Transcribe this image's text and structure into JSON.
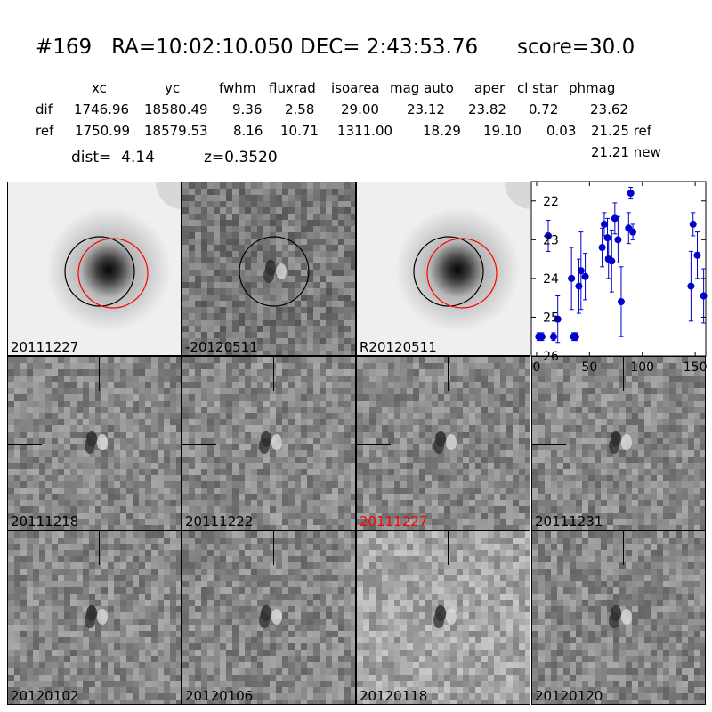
{
  "header": {
    "title": "#169   RA=10:02:10.050 DEC= 2:43:53.76      score=30.0",
    "columns": [
      "xc",
      "yc",
      "fwhm",
      "fluxrad",
      "isoarea",
      "mag auto",
      "aper",
      "cl star",
      "phmag"
    ],
    "dif": {
      "label": "dif",
      "values": [
        "1746.96",
        "18580.49",
        "9.36",
        "2.58",
        "29.00",
        "23.12",
        "23.82",
        "0.72",
        "23.62"
      ]
    },
    "ref": {
      "label": "ref",
      "values": [
        "1750.99",
        "18579.53",
        "8.16",
        "10.71",
        "1311.00",
        "18.29",
        "19.10",
        "0.03",
        "21.25 ref"
      ]
    },
    "extra": "21.21 new",
    "dist": "dist=  4.14",
    "z": "z=0.3520"
  },
  "panels": [
    {
      "label": "20111227",
      "kind": "galaxy",
      "seed": 11,
      "circles": [
        "black",
        "red"
      ],
      "red": false
    },
    {
      "label": "-20120511",
      "kind": "diff",
      "seed": 12,
      "circles": [
        "black"
      ],
      "red": false
    },
    {
      "label": "R20120511",
      "kind": "galaxy",
      "seed": 13,
      "circles": [
        "black",
        "red"
      ],
      "red": false
    },
    {
      "label": "20111218",
      "kind": "stamp",
      "seed": 21,
      "red": false
    },
    {
      "label": "20111222",
      "kind": "stamp",
      "seed": 22,
      "red": false
    },
    {
      "label": "20111227",
      "kind": "stamp",
      "seed": 23,
      "red": true
    },
    {
      "label": "20111231",
      "kind": "stamp",
      "seed": 24,
      "red": false
    },
    {
      "label": "20120102",
      "kind": "stamp",
      "seed": 31,
      "red": false
    },
    {
      "label": "20120106",
      "kind": "stamp",
      "seed": 32,
      "red": false
    },
    {
      "label": "20120118",
      "kind": "stamp",
      "seed": 33,
      "red": false
    },
    {
      "label": "20120120",
      "kind": "stamp",
      "seed": 34,
      "red": false
    }
  ],
  "colors": {
    "marker": "#0000cc",
    "highlight": "#ff0000"
  },
  "chart_data": {
    "type": "scatter",
    "xlim": [
      -5,
      160
    ],
    "ylim": [
      26,
      21.5
    ],
    "y_inverted": true,
    "xticks": [
      0,
      50,
      100,
      150
    ],
    "yticks": [
      22,
      23,
      24,
      25,
      26
    ],
    "points": [
      {
        "x": 2,
        "y": 25.5,
        "err": 0.1
      },
      {
        "x": 5,
        "y": 25.5,
        "err": 0.1
      },
      {
        "x": 11,
        "y": 22.9,
        "err": 0.4
      },
      {
        "x": 16,
        "y": 25.5,
        "err": 0.1
      },
      {
        "x": 20,
        "y": 25.05,
        "err": 0.6
      },
      {
        "x": 33,
        "y": 24.0,
        "err": 0.8
      },
      {
        "x": 35,
        "y": 25.5,
        "err": 0.1
      },
      {
        "x": 37,
        "y": 25.5,
        "err": 0.1
      },
      {
        "x": 40,
        "y": 24.2,
        "err": 0.7
      },
      {
        "x": 42,
        "y": 23.8,
        "err": 1.0
      },
      {
        "x": 46,
        "y": 23.95,
        "err": 0.6
      },
      {
        "x": 62,
        "y": 23.2,
        "err": 0.5
      },
      {
        "x": 64,
        "y": 22.6,
        "err": 0.3
      },
      {
        "x": 67,
        "y": 22.95,
        "err": 0.5
      },
      {
        "x": 68,
        "y": 23.5,
        "err": 0.5
      },
      {
        "x": 71,
        "y": 23.55,
        "err": 0.8
      },
      {
        "x": 74,
        "y": 22.45,
        "err": 0.4
      },
      {
        "x": 77,
        "y": 23.0,
        "err": 0.6
      },
      {
        "x": 80,
        "y": 24.6,
        "err": 0.9
      },
      {
        "x": 87,
        "y": 22.7,
        "err": 0.4
      },
      {
        "x": 89,
        "y": 21.8,
        "err": 0.15
      },
      {
        "x": 91,
        "y": 22.8,
        "err": 0.2
      },
      {
        "x": 146,
        "y": 24.2,
        "err": 0.9
      },
      {
        "x": 148,
        "y": 22.6,
        "err": 0.3
      },
      {
        "x": 152,
        "y": 23.4,
        "err": 0.6
      },
      {
        "x": 158,
        "y": 24.45,
        "err": 0.7
      }
    ]
  }
}
